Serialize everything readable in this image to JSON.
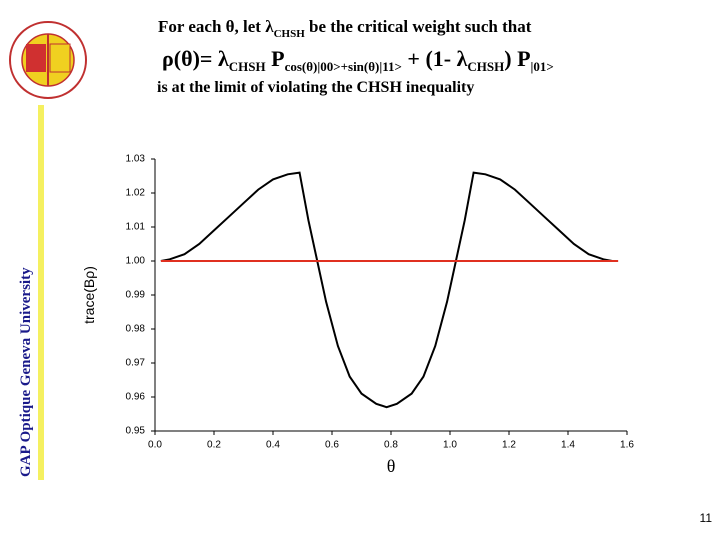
{
  "slide": {
    "heading": [
      "For each θ, let λ",
      "CHSH",
      " be the critical weight such that"
    ],
    "formula": [
      "ρ(θ)= λ",
      "CHSH",
      " P",
      "cos(θ)|00>+sin(θ)|11>",
      " + (1- λ",
      "CHSH",
      ") P",
      "|01>"
    ],
    "caption": "is at the limit of violating the CHSH inequality",
    "sidebar": "GAP Optique Geneva University",
    "page_number": "11"
  },
  "chart_data": {
    "type": "line",
    "xlabel": "θ",
    "ylabel": "trace(Bρ)",
    "xlim": [
      0,
      1.6
    ],
    "ylim": [
      0.95,
      1.03
    ],
    "xticks": [
      {
        "value": 0,
        "label": "0.0"
      },
      0.2,
      0.4,
      0.6,
      0.8,
      {
        "value": 1,
        "label": "1.0"
      },
      1.2,
      1.4,
      1.6
    ],
    "yticks": [
      0.95,
      0.96,
      0.97,
      0.98,
      0.99,
      {
        "value": 1,
        "label": "1.00"
      },
      1.01,
      1.02,
      1.03
    ],
    "series": [
      {
        "color": "#000000",
        "x": [
          0.02,
          0.05,
          0.1,
          0.15,
          0.2,
          0.25,
          0.3,
          0.35,
          0.4,
          0.45,
          0.49,
          0.52,
          0.55,
          0.58,
          0.62,
          0.66,
          0.7,
          0.75,
          0.785,
          0.82,
          0.87,
          0.91,
          0.95,
          0.99,
          1.02,
          1.05,
          1.08,
          1.12,
          1.17,
          1.22,
          1.27,
          1.32,
          1.37,
          1.42,
          1.47,
          1.52,
          1.55
        ],
        "values": [
          1.0,
          1.0005,
          1.002,
          1.005,
          1.009,
          1.013,
          1.017,
          1.021,
          1.024,
          1.0255,
          1.026,
          1.012,
          1.0,
          0.988,
          0.975,
          0.966,
          0.961,
          0.958,
          0.957,
          0.958,
          0.961,
          0.966,
          0.975,
          0.988,
          1.0,
          1.012,
          1.026,
          1.0255,
          1.024,
          1.021,
          1.017,
          1.013,
          1.009,
          1.005,
          1.002,
          1.0005,
          1.0
        ]
      },
      {
        "color": "#e03020",
        "x": [
          0.02,
          1.57
        ],
        "values": [
          1.0,
          1.0
        ]
      }
    ]
  }
}
